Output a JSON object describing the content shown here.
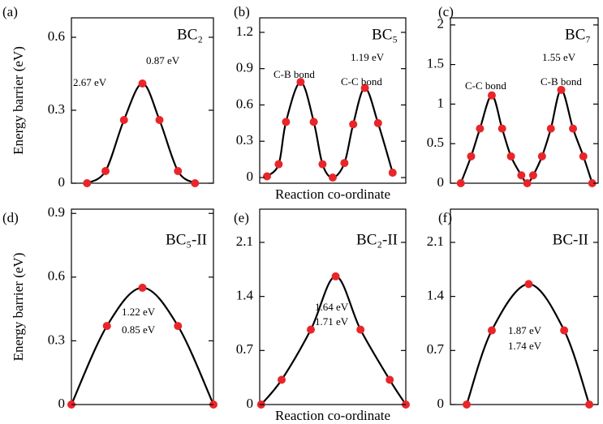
{
  "chart_data": [
    {
      "type": "line",
      "label": "(a)",
      "title": "BC₂",
      "ylabel": "Energy barrier (eV)",
      "x": [
        0.11,
        0.24,
        0.37,
        0.5,
        0.62,
        0.75,
        0.87
      ],
      "values": [
        0,
        0.05,
        0.26,
        0.41,
        0.26,
        0.05,
        0
      ],
      "xlim": [
        0,
        1
      ],
      "ylim": [
        0,
        0.68
      ],
      "yticks": [
        0,
        0.3,
        0.6
      ],
      "color": "#000000",
      "marker_color": "#e8262a",
      "annotations": [
        {
          "text": "0.87 eV",
          "color": "#3a4fa0"
        },
        {
          "text": "2.67 eV",
          "color": "#b030b0"
        }
      ]
    },
    {
      "type": "line",
      "label": "(b)",
      "title": "BC₅",
      "xlabel": "Reaction co-ordinate",
      "x": [
        0.05,
        0.13,
        0.18,
        0.28,
        0.37,
        0.43,
        0.5,
        0.58,
        0.64,
        0.72,
        0.81,
        0.91
      ],
      "values": [
        0.01,
        0.11,
        0.46,
        0.79,
        0.46,
        0.11,
        0,
        0.12,
        0.44,
        0.74,
        0.45,
        0.04
      ],
      "xlim": [
        0,
        1
      ],
      "ylim": [
        0,
        1.32
      ],
      "yticks": [
        0,
        0.3,
        0.6,
        0.9,
        1.2
      ],
      "color": "#000000",
      "marker_color": "#e8262a",
      "annotations": [
        {
          "text": "1.19 eV",
          "color": "#3a4fa0"
        },
        {
          "text": "C-B bond",
          "color": "#000000"
        },
        {
          "text": "C-C bond",
          "color": "#000000"
        }
      ]
    },
    {
      "type": "line",
      "label": "(c)",
      "title": "BC₇",
      "x": [
        0.07,
        0.14,
        0.2,
        0.28,
        0.35,
        0.41,
        0.48,
        0.52,
        0.56,
        0.62,
        0.68,
        0.75,
        0.83,
        0.9,
        0.96
      ],
      "values": [
        0,
        0.34,
        0.69,
        1.11,
        0.69,
        0.34,
        0.1,
        0,
        0.1,
        0.34,
        0.69,
        1.18,
        0.69,
        0.34,
        0
      ],
      "xlim": [
        0,
        1
      ],
      "ylim": [
        0,
        2.09
      ],
      "yticks": [
        0,
        0.5,
        1,
        1.5,
        2
      ],
      "color": "#000000",
      "marker_color": "#e8262a",
      "annotations": [
        {
          "text": "1.55 eV",
          "color": "#3a4fa0"
        },
        {
          "text": "C-C bond",
          "color": "#000000"
        },
        {
          "text": "C-B bond",
          "color": "#000000"
        }
      ]
    },
    {
      "type": "line",
      "label": "(d)",
      "title": "BC₅-II",
      "ylabel": "Energy barrier (eV)",
      "x": [
        0,
        0.25,
        0.5,
        0.75,
        1
      ],
      "values": [
        0,
        0.37,
        0.55,
        0.37,
        0
      ],
      "xlim": [
        0,
        1
      ],
      "ylim": [
        0,
        0.92
      ],
      "yticks": [
        0,
        0.3,
        0.6,
        0.9
      ],
      "color": "#000000",
      "marker_color": "#e8262a",
      "annotations": [
        {
          "text": "1.22 eV",
          "color": "#b030b0"
        },
        {
          "text": "0.85 eV",
          "color": "#3a4fa0"
        }
      ]
    },
    {
      "type": "line",
      "label": "(e)",
      "title": "BC₂-II",
      "xlabel": "Reaction co-ordinate",
      "x": [
        0.01,
        0.15,
        0.35,
        0.52,
        0.69,
        0.89,
        1
      ],
      "values": [
        0,
        0.32,
        0.97,
        1.66,
        0.97,
        0.32,
        0
      ],
      "xlim": [
        0,
        1
      ],
      "ylim": [
        0,
        2.53
      ],
      "yticks": [
        0,
        0.7,
        1.4,
        2.1
      ],
      "color": "#000000",
      "marker_color": "#e8262a",
      "annotations": [
        {
          "text": "1.64 eV",
          "color": "#b030b0"
        },
        {
          "text": "1.71 eV",
          "color": "#3a4fa0"
        }
      ]
    },
    {
      "type": "line",
      "label": "(f)",
      "title": "BC-II",
      "x": [
        0.11,
        0.28,
        0.53,
        0.77,
        0.94
      ],
      "values": [
        0,
        0.96,
        1.56,
        0.96,
        0
      ],
      "xlim": [
        0,
        1
      ],
      "ylim": [
        0,
        2.53
      ],
      "yticks": [
        0,
        0.7,
        1.4,
        2.1
      ],
      "color": "#000000",
      "marker_color": "#e8262a",
      "annotations": [
        {
          "text": "1.87 eV",
          "color": "#b030b0"
        },
        {
          "text": "1.74 eV",
          "color": "#3a4fa0"
        }
      ]
    }
  ]
}
